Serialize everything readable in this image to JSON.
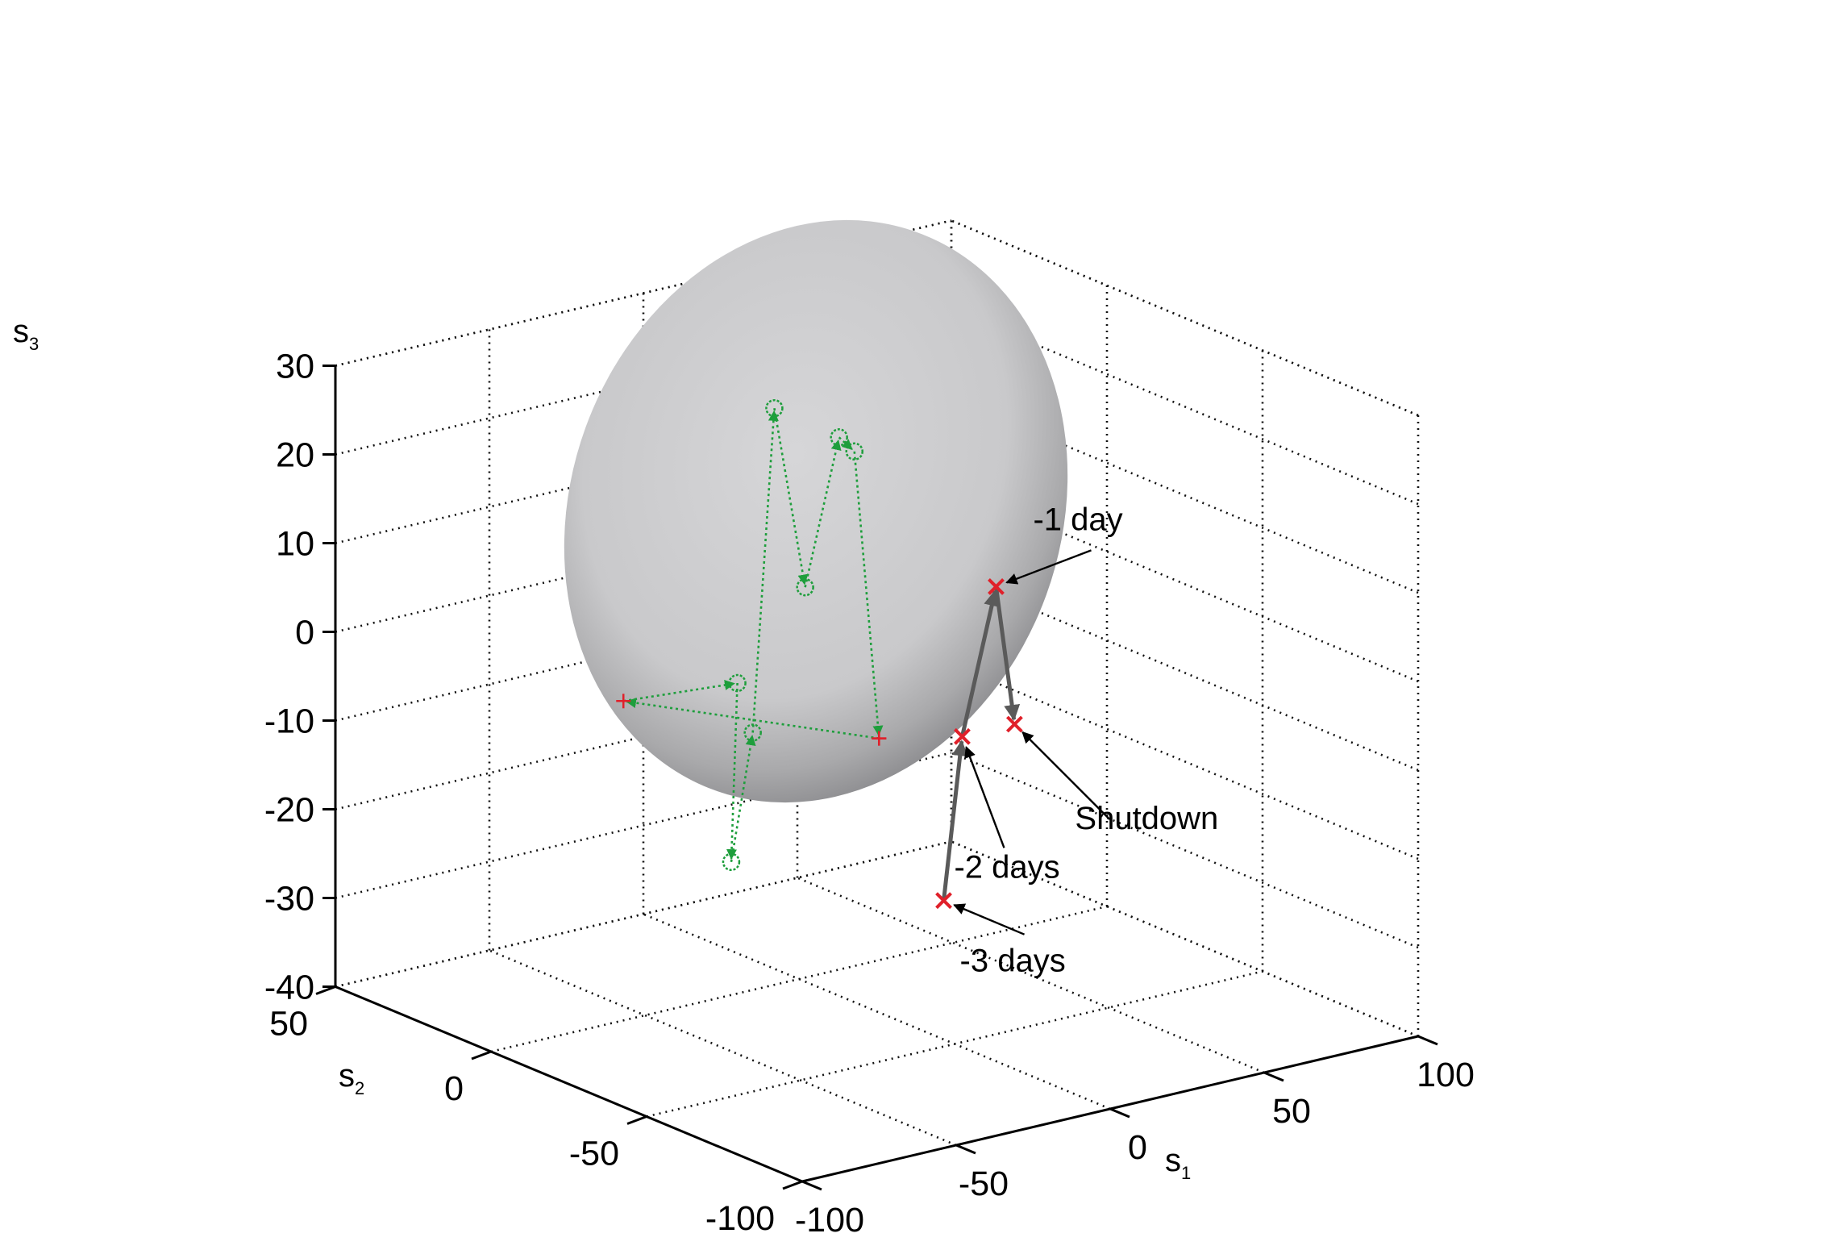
{
  "chart_data": {
    "type": "scatter",
    "projection": "3d",
    "title": "",
    "axes": {
      "x": {
        "label": "s",
        "subscript": "1",
        "ticks": [
          "-100",
          "-50",
          "0",
          "50",
          "100"
        ],
        "range": [
          -100,
          100
        ]
      },
      "y": {
        "label": "s",
        "subscript": "2",
        "ticks": [
          "-100",
          "-50",
          "0",
          "50"
        ],
        "range": [
          -100,
          50
        ]
      },
      "z": {
        "label": "s",
        "subscript": "3",
        "ticks": [
          "-40",
          "-30",
          "-20",
          "-10",
          "0",
          "10",
          "20",
          "30"
        ],
        "range": [
          -40,
          30
        ]
      }
    },
    "grid": true,
    "ellipsoid": {
      "color": "#c8c8ca",
      "description": "grey shaded ellipsoid region"
    },
    "series": [
      {
        "kind": "normal-trajectory",
        "color": "#1e9e3c",
        "marker": "circle",
        "arrows": true,
        "points": [
          {
            "s1": 26,
            "s2": 0,
            "s3": -15,
            "marker": "start"
          },
          {
            "s1": -57,
            "s2": 0,
            "s3": -4,
            "marker": "plus"
          },
          {
            "s1": -20,
            "s2": 0,
            "s3": -5
          },
          {
            "s1": -22,
            "s2": 0,
            "s3": -25
          },
          {
            "s1": -15,
            "s2": 0,
            "s3": -11
          },
          {
            "s1": -8,
            "s2": 0,
            "s3": 25
          },
          {
            "s1": 2,
            "s2": 0,
            "s3": 4
          },
          {
            "s1": 13,
            "s2": 0,
            "s3": 20
          },
          {
            "s1": 18,
            "s2": 0,
            "s3": 18
          },
          {
            "s1": 26,
            "s2": 0,
            "s3": -15,
            "marker": "plus"
          }
        ]
      },
      {
        "kind": "fault-trajectory",
        "color": "#e0202a",
        "line_color": "#5a5a5a",
        "marker": "x",
        "arrows": true,
        "points": [
          {
            "s1": 47,
            "s2": 0,
            "s3": -35,
            "label": "-3 days"
          },
          {
            "s1": 53,
            "s2": 0,
            "s3": -17,
            "label": "-2 days"
          },
          {
            "s1": 64,
            "s2": 0,
            "s3": -1,
            "label": "-1 day"
          },
          {
            "s1": 70,
            "s2": 0,
            "s3": -17,
            "label": "Shutdown"
          }
        ]
      }
    ]
  }
}
